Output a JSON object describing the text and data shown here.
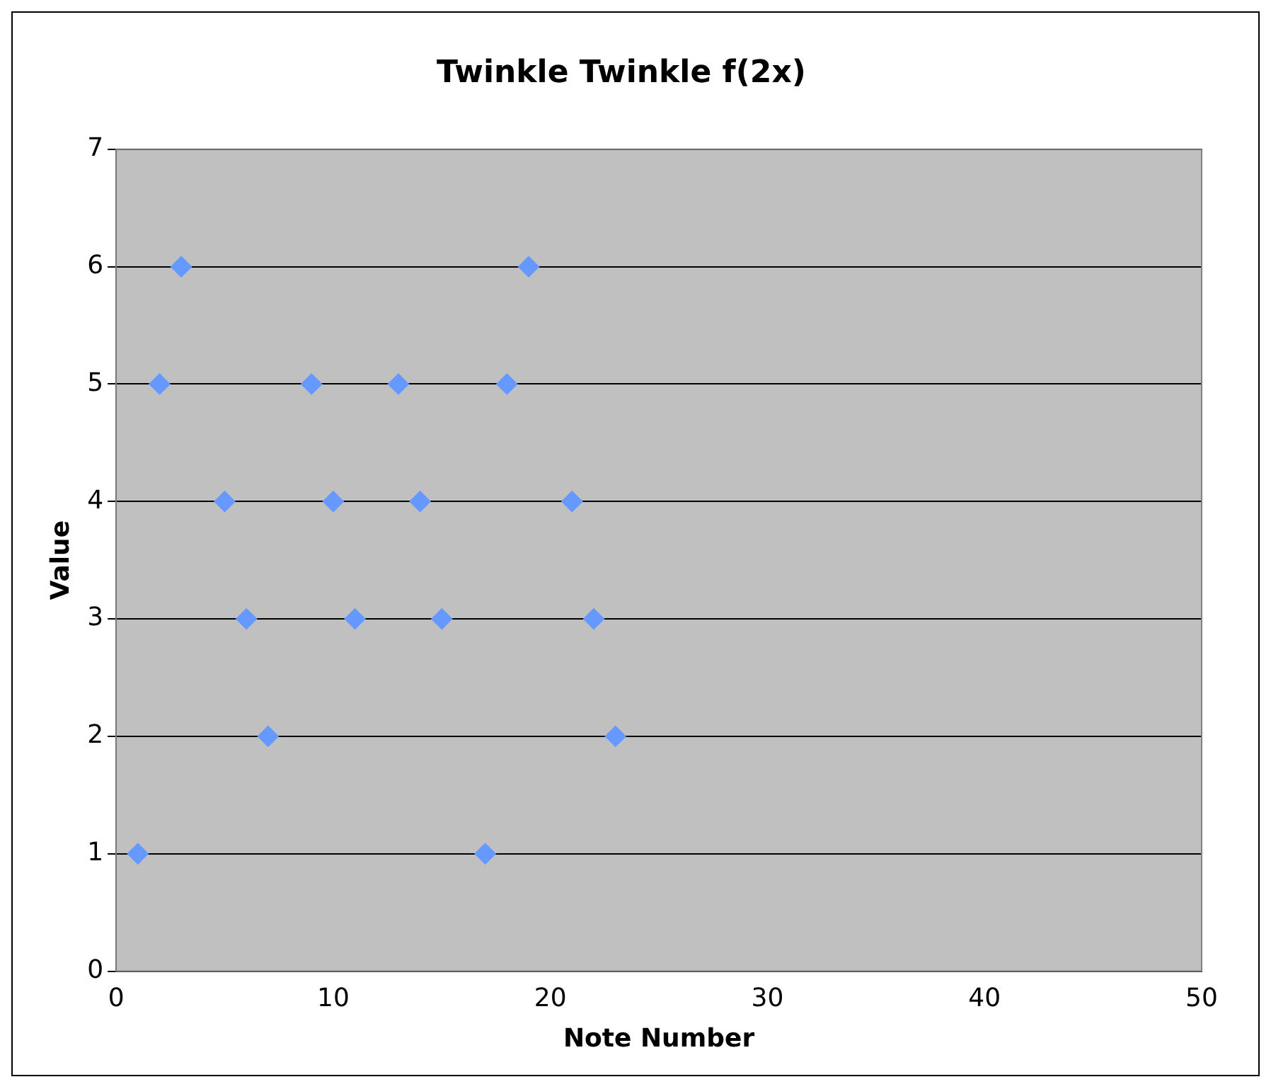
{
  "chart_data": {
    "type": "scatter",
    "title": "Twinkle Twinkle f(2x)",
    "xlabel": "Note Number",
    "ylabel": "Value",
    "x": [
      1,
      2,
      3,
      5,
      6,
      7,
      9,
      10,
      11,
      13,
      14,
      15,
      17,
      18,
      19,
      21,
      22,
      23
    ],
    "series": [
      {
        "color": "#6699ff",
        "values": [
          1,
          5,
          6,
          4,
          3,
          2,
          5,
          4,
          3,
          5,
          4,
          3,
          1,
          5,
          6,
          4,
          3,
          2
        ]
      }
    ],
    "xlim": [
      0,
      50
    ],
    "xticks": [
      0,
      10,
      20,
      30,
      40,
      50
    ],
    "ylim": [
      0,
      7
    ],
    "yticks": [
      0,
      1,
      2,
      3,
      4,
      5,
      6,
      7
    ],
    "grid": "y",
    "legend": false,
    "marker": "diamond"
  }
}
